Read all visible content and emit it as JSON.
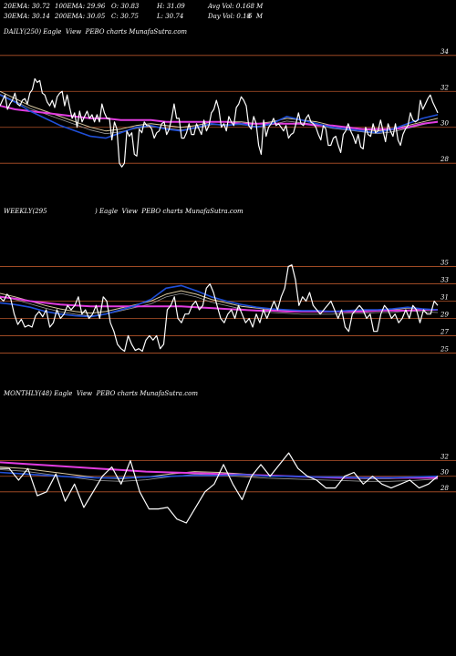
{
  "header": {
    "row1": {
      "ema20": "20EMA: 30.72",
      "ema100": "100EMA: 29.96",
      "open": "O: 30.83",
      "high": "H: 31.09",
      "avg_vol": "Avg Vol: 0.168 M"
    },
    "row2": {
      "ema30": "30EMA: 30.14",
      "ema200": "200EMA: 30.05",
      "close": "C: 30.75",
      "low": "L: 30.74",
      "day_vol": "Day Vol: 0.18",
      "period": "6  M"
    }
  },
  "panels": {
    "daily_label": "DAILY(250) Eagle  View  PEBO charts MunafaSutra.com",
    "weekly_label_left": "WEEKLY(295",
    "weekly_label_right": ") Eagle  View  PEBO charts MunafaSutra.com",
    "monthly_label": "MONTHLY(48) Eagle  View  PEBO charts MunafaSutra.com"
  },
  "colors": {
    "price": "#ffffff",
    "ema_blue": "#1f4fd8",
    "ema_pink": "#e23ce0",
    "ema_tan": "#d8c8a0",
    "ema_gray": "#9a9a9a",
    "grid": "#b5542a"
  },
  "chart_data": [
    {
      "type": "line",
      "name": "daily",
      "yticks": [
        34,
        32,
        30,
        28
      ],
      "ylim": [
        27.2,
        34.8
      ],
      "series": [
        {
          "name": "price",
          "values": [
            31.2,
            31.5,
            31.8,
            31.0,
            31.3,
            31.5,
            31.9,
            31.3,
            31.2,
            31.5,
            31.6,
            31.3,
            31.9,
            32.1,
            32.7,
            32.5,
            32.6,
            31.9,
            31.8,
            31.4,
            31.2,
            31.5,
            31.1,
            31.7,
            31.9,
            32.0,
            31.2,
            31.8,
            31.1,
            30.5,
            30.8,
            30.0,
            30.9,
            30.3,
            30.6,
            30.9,
            30.5,
            30.7,
            30.3,
            30.7,
            30.3,
            31.3,
            30.8,
            30.5,
            30.5,
            29.3,
            30.3,
            29.9,
            28.0,
            27.8,
            28.0,
            29.8,
            29.5,
            29.7,
            28.5,
            28.4,
            29.9,
            29.7,
            30.3,
            30.1,
            30.1,
            29.9,
            29.4,
            29.7,
            29.8,
            30.2,
            30.3,
            29.6,
            29.9,
            30.5,
            31.3,
            30.5,
            30.5,
            29.4,
            29.4,
            29.7,
            30.2,
            29.6,
            29.6,
            30.2,
            29.9,
            29.6,
            30.4,
            29.8,
            30.1,
            30.8,
            31.0,
            31.5,
            31.0,
            30.0,
            30.2,
            29.8,
            30.6,
            30.3,
            30.1,
            31.1,
            31.3,
            31.7,
            31.5,
            31.2,
            30.1,
            29.9,
            30.6,
            30.2,
            29.0,
            28.5,
            30.4,
            29.5,
            30.0,
            30.2,
            30.5,
            30.1,
            30.2,
            30.0,
            29.8,
            30.1,
            29.4,
            29.6,
            29.7,
            30.2,
            30.8,
            30.2,
            30.1,
            30.5,
            30.7,
            30.3,
            30.2,
            30.0,
            29.6,
            29.3,
            30.1,
            29.9,
            29.0,
            29.0,
            29.4,
            29.5,
            29.0,
            28.6,
            29.6,
            29.8,
            30.2,
            29.8,
            29.5,
            29.1,
            29.6,
            28.9,
            28.8,
            30.0,
            29.6,
            29.5,
            30.2,
            29.7,
            29.8,
            30.4,
            29.8,
            29.2,
            30.2,
            29.8,
            29.5,
            30.2,
            29.3,
            29.0,
            29.6,
            29.9,
            30.1,
            30.8,
            30.4,
            30.3,
            30.4,
            31.5,
            31.0,
            31.3,
            31.6,
            31.8,
            31.4,
            31.1,
            30.8
          ]
        },
        {
          "name": "ema-blue",
          "values": [
            31.8,
            31.4,
            30.9,
            30.5,
            30.1,
            29.8,
            29.5,
            29.4,
            29.7,
            30.0,
            30.1,
            29.9,
            29.8,
            30.0,
            30.2,
            30.1,
            30.2,
            30.0,
            30.2,
            30.6,
            30.4,
            30.2,
            30.0,
            29.9,
            29.8,
            29.7,
            29.9,
            30.2,
            30.5,
            30.7
          ]
        },
        {
          "name": "ema-pink",
          "values": [
            31.2,
            31.0,
            30.9,
            30.8,
            30.7,
            30.6,
            30.5,
            30.5,
            30.4,
            30.4,
            30.4,
            30.3,
            30.3,
            30.3,
            30.3,
            30.3,
            30.2,
            30.2,
            30.2,
            30.2,
            30.2,
            30.1,
            30.1,
            30.0,
            29.9,
            29.9,
            29.9,
            30.0,
            30.2,
            30.3
          ]
        },
        {
          "name": "ema-tan",
          "values": [
            32.0,
            31.6,
            31.2,
            30.9,
            30.6,
            30.3,
            30.0,
            29.8,
            29.9,
            30.1,
            30.2,
            30.1,
            30.0,
            30.1,
            30.3,
            30.3,
            30.3,
            30.2,
            30.3,
            30.5,
            30.4,
            30.3,
            30.1,
            30.0,
            29.9,
            29.8,
            29.9,
            30.1,
            30.3,
            30.5
          ]
        }
      ]
    },
    {
      "type": "line",
      "name": "weekly",
      "yticks": [
        35,
        33,
        31,
        29,
        27,
        25
      ],
      "ylim": [
        24.2,
        35.8
      ],
      "series": [
        {
          "name": "price",
          "values": [
            31.4,
            31.0,
            31.8,
            31.3,
            29.5,
            28.3,
            28.9,
            28.0,
            28.2,
            28.0,
            29.3,
            29.8,
            29.2,
            30.0,
            28.0,
            28.5,
            30.0,
            29.0,
            29.5,
            30.5,
            30.0,
            30.5,
            31.5,
            29.5,
            30.0,
            29.0,
            29.5,
            30.5,
            29.0,
            31.5,
            31.0,
            28.5,
            27.5,
            26.0,
            25.5,
            25.2,
            27.0,
            26.0,
            25.3,
            25.5,
            25.2,
            26.5,
            27.0,
            26.5,
            27.0,
            25.5,
            26.0,
            30.0,
            30.5,
            31.5,
            29.0,
            28.5,
            29.5,
            29.5,
            30.5,
            31.0,
            30.0,
            30.5,
            32.5,
            33.0,
            32.0,
            30.5,
            29.0,
            28.5,
            29.5,
            30.0,
            29.0,
            30.5,
            29.5,
            28.5,
            29.0,
            28.0,
            29.5,
            28.5,
            30.0,
            29.0,
            30.0,
            31.0,
            30.0,
            31.5,
            32.5,
            35.0,
            35.2,
            33.5,
            30.5,
            31.5,
            31.0,
            32.0,
            30.5,
            30.0,
            29.5,
            30.0,
            30.5,
            31.0,
            30.0,
            29.0,
            30.0,
            28.0,
            27.5,
            29.5,
            30.0,
            30.5,
            30.0,
            29.0,
            29.5,
            27.5,
            27.5,
            29.5,
            30.5,
            30.0,
            29.0,
            29.5,
            28.5,
            29.0,
            30.0,
            29.0,
            30.5,
            30.0,
            28.5,
            30.0,
            29.5,
            29.5,
            31.0,
            30.5
          ]
        },
        {
          "name": "ema-blue",
          "values": [
            30.8,
            30.6,
            30.3,
            29.8,
            29.5,
            29.3,
            29.2,
            29.5,
            30.0,
            30.5,
            31.2,
            32.5,
            32.8,
            32.2,
            31.5,
            31.0,
            30.6,
            30.3,
            30.1,
            30.0,
            29.9,
            29.9,
            29.8,
            29.9,
            30.0,
            30.0,
            30.1,
            30.3,
            30.1,
            30.0
          ]
        },
        {
          "name": "ema-pink",
          "values": [
            31.5,
            31.3,
            31.0,
            30.8,
            30.6,
            30.5,
            30.4,
            30.4,
            30.4,
            30.4,
            30.4,
            30.4,
            30.4,
            30.3,
            30.2,
            30.1,
            30.0,
            29.9,
            29.9,
            29.8,
            29.8,
            29.8,
            29.8,
            29.8,
            29.8,
            29.9,
            29.9,
            29.9,
            30.0,
            30.0
          ]
        },
        {
          "name": "ema-tan",
          "values": [
            31.9,
            31.5,
            31.0,
            30.5,
            30.1,
            29.8,
            29.6,
            29.8,
            30.2,
            30.6,
            31.0,
            31.8,
            32.2,
            31.8,
            31.2,
            30.8,
            30.4,
            30.2,
            30.0,
            29.9,
            29.8,
            29.8,
            29.8,
            29.9,
            29.9,
            30.0,
            30.0,
            30.2,
            30.1,
            30.0
          ]
        }
      ]
    },
    {
      "type": "line",
      "name": "monthly",
      "yticks": [
        32,
        30,
        28
      ],
      "ylim": [
        23.3,
        35.0
      ],
      "series": [
        {
          "name": "price",
          "values": [
            31.0,
            31.0,
            29.5,
            31.0,
            27.5,
            28.0,
            30.3,
            26.8,
            29.0,
            26.0,
            28.0,
            30.0,
            31.2,
            29.0,
            32.0,
            28.0,
            25.8,
            25.8,
            26.0,
            24.5,
            24.0,
            26.0,
            28.0,
            29.0,
            31.5,
            29.0,
            27.0,
            30.0,
            31.5,
            30.0,
            31.5,
            33.0,
            31.0,
            30.0,
            29.5,
            28.5,
            28.5,
            30.0,
            30.5,
            29.0,
            30.0,
            29.0,
            28.5,
            29.0,
            29.5,
            28.5,
            29.0,
            30.0
          ]
        },
        {
          "name": "ema-blue",
          "values": [
            30.5,
            30.3,
            30.1,
            29.9,
            29.8,
            29.8,
            29.9,
            30.0,
            30.1,
            30.1,
            30.2,
            30.0,
            30.0,
            29.9,
            29.9,
            29.8,
            29.8,
            29.9,
            30.0
          ]
        },
        {
          "name": "ema-pink",
          "values": [
            31.8,
            31.6,
            31.4,
            31.2,
            31.0,
            30.8,
            30.6,
            30.5,
            30.4,
            30.3,
            30.2,
            30.1,
            30.0,
            29.9,
            29.8,
            29.8,
            29.8,
            29.8,
            29.8
          ]
        },
        {
          "name": "ema-tan",
          "values": [
            31.2,
            31.0,
            30.6,
            30.2,
            29.8,
            29.7,
            29.9,
            30.3,
            30.6,
            30.5,
            30.3,
            30.1,
            30.0,
            29.9,
            29.8,
            29.7,
            29.7,
            29.8,
            30.0
          ]
        }
      ]
    }
  ]
}
